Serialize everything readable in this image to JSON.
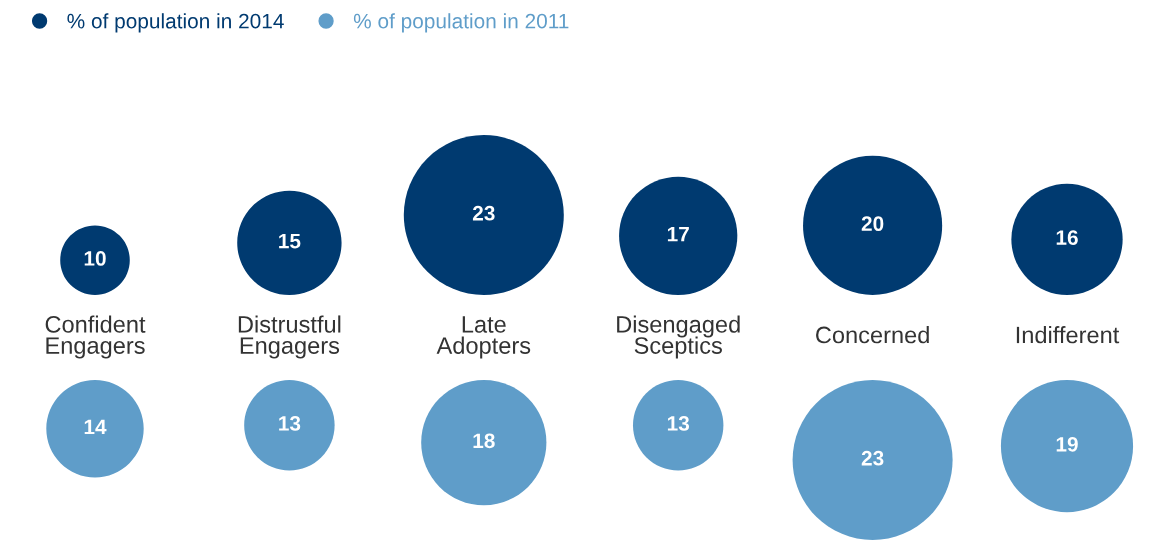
{
  "chart_data": {
    "type": "other",
    "categories": [
      "Confident\nEngagers",
      "Distrustful\nEngagers",
      "Late\nAdopters",
      "Disengaged\nSceptics",
      "Concerned",
      "Indifferent"
    ],
    "series": [
      {
        "name": "% of population in 2014",
        "color": "#003a70",
        "values": [
          10,
          15,
          23,
          17,
          20,
          16
        ]
      },
      {
        "name": "% of population in 2011",
        "color": "#5f9dc9",
        "values": [
          14,
          13,
          18,
          13,
          23,
          19
        ]
      }
    ],
    "data_labels": true,
    "legend": "top left"
  }
}
